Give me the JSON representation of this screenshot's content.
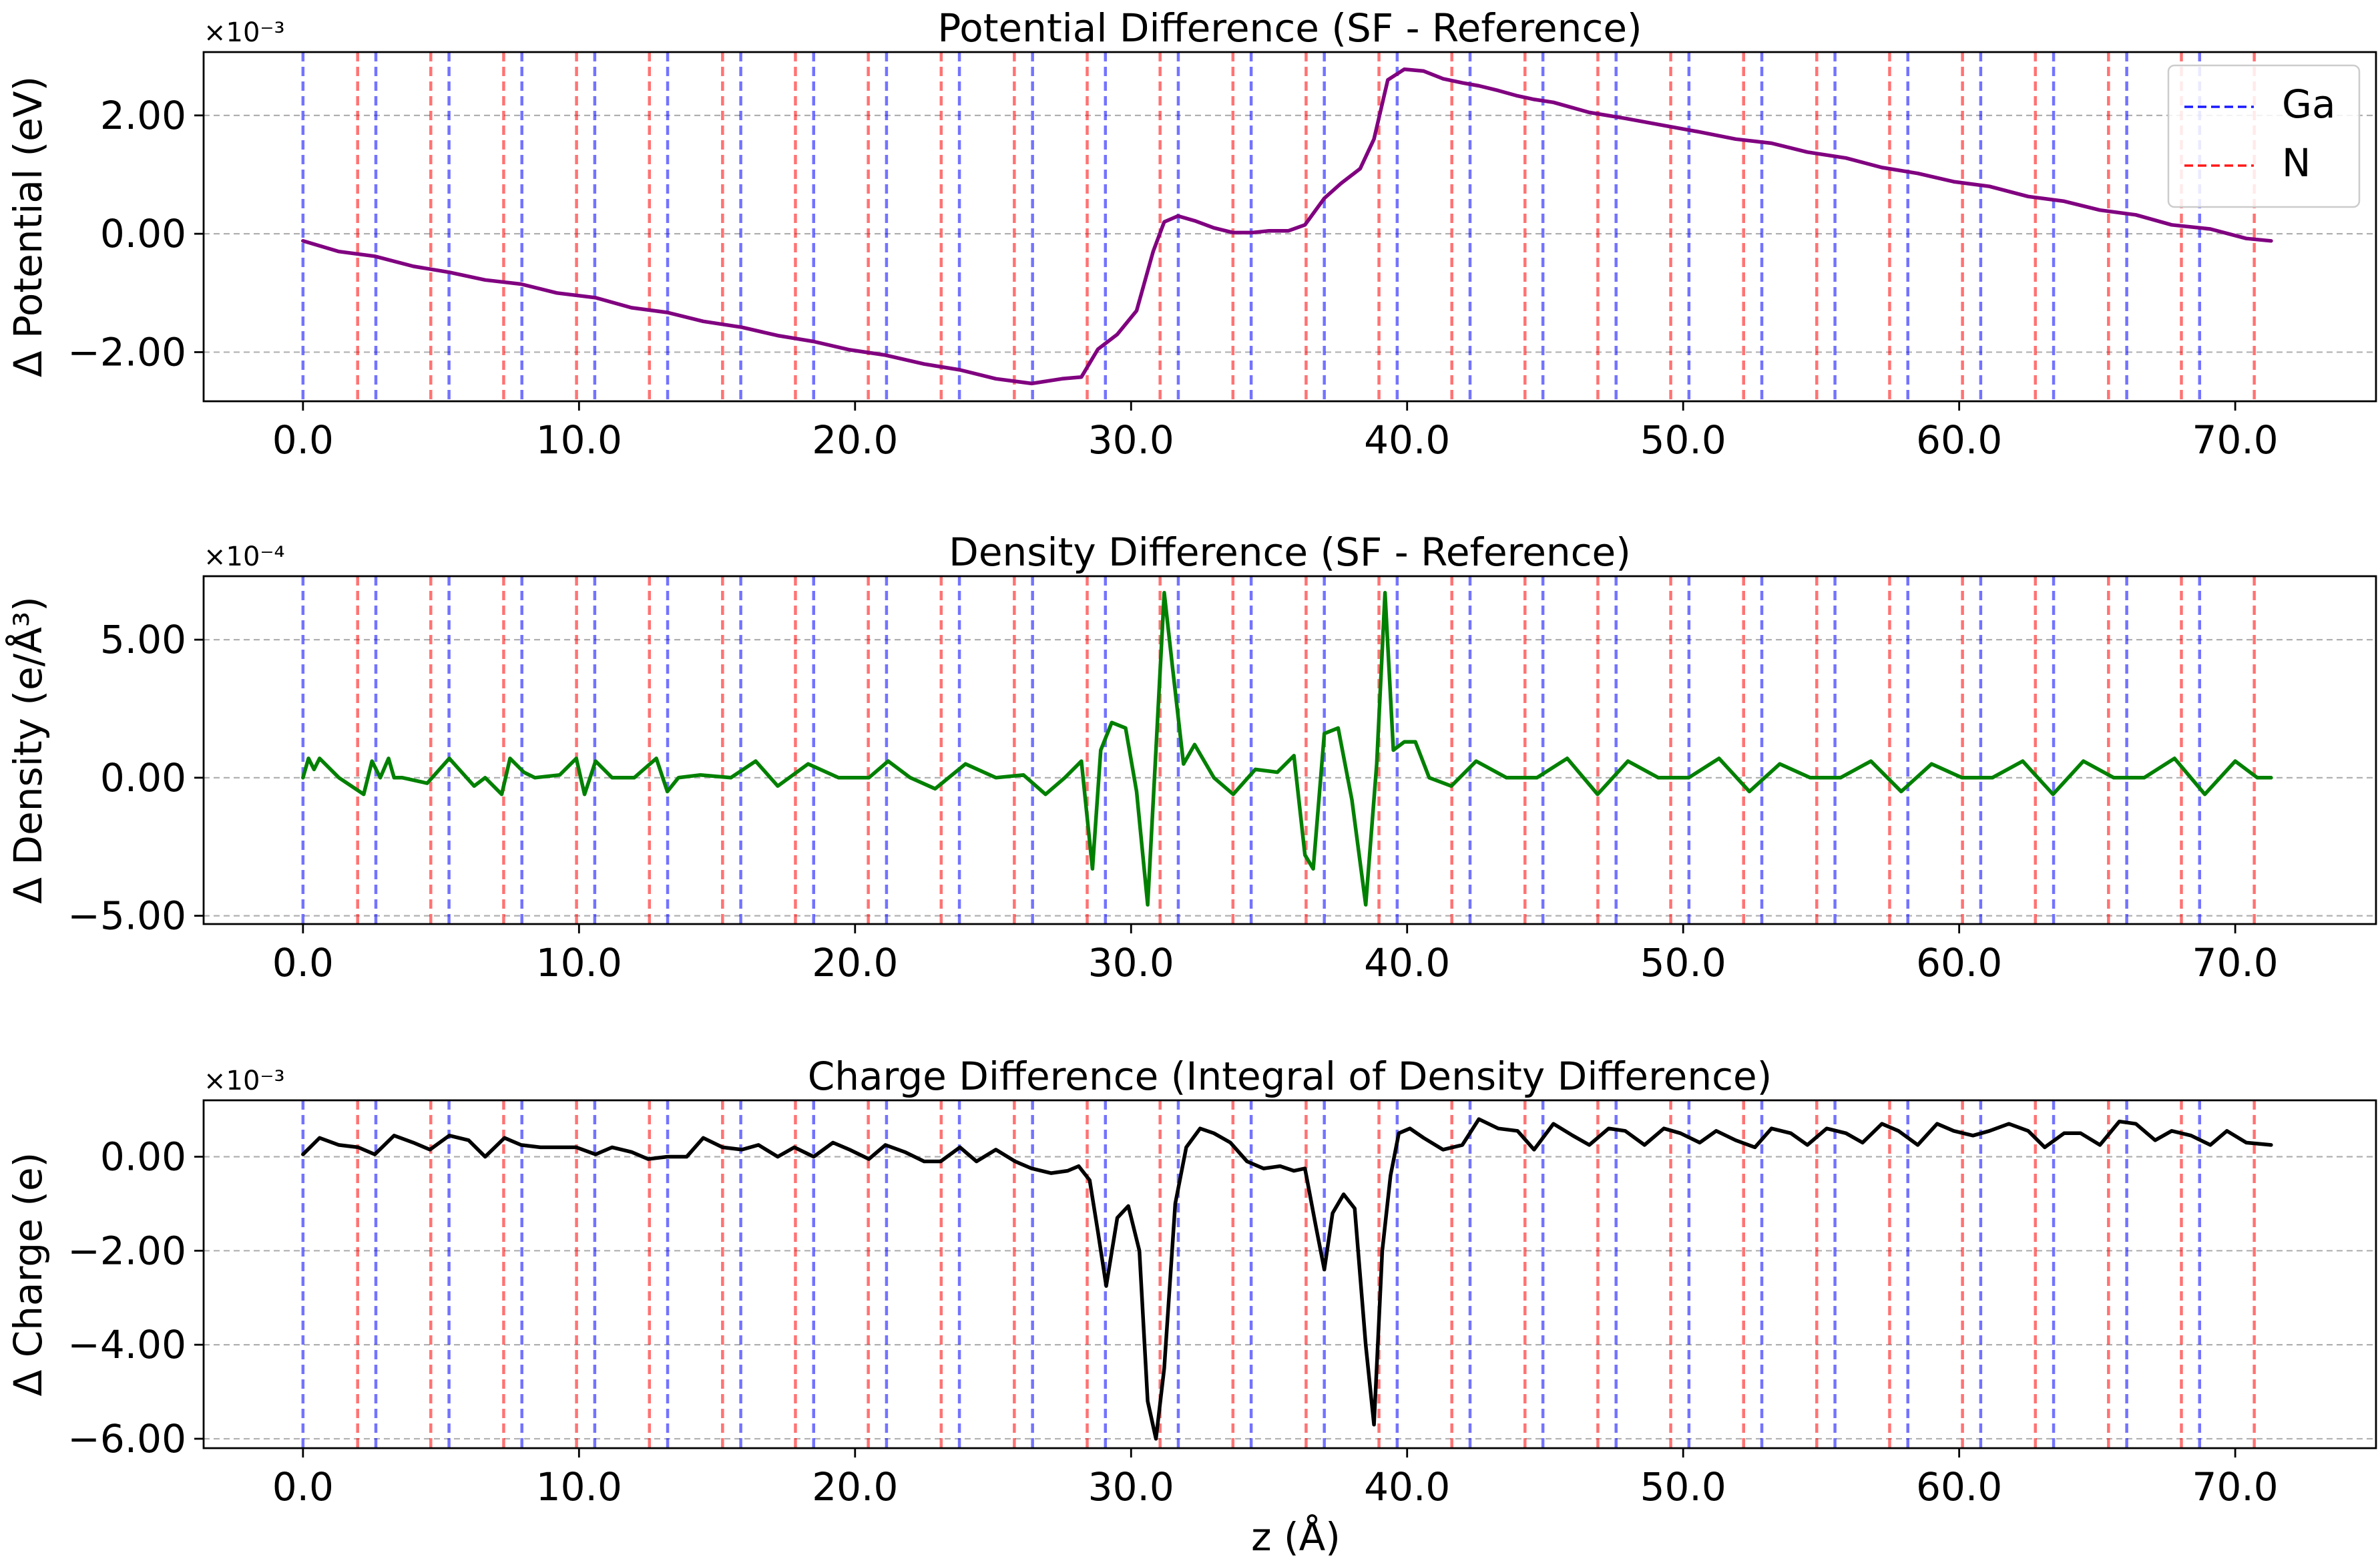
{
  "figure": {
    "xlabel": "z (Å)"
  },
  "legend": {
    "placement": "top-right",
    "items": [
      {
        "label": "Ga",
        "color": "#0000ff"
      },
      {
        "label": "N",
        "color": "#ff0000"
      }
    ]
  },
  "atom_lines": {
    "Ga": [
      0.0,
      2.64,
      5.29,
      7.93,
      10.57,
      13.21,
      15.86,
      18.5,
      21.14,
      23.78,
      26.43,
      29.07,
      31.71,
      34.35,
      37.0,
      39.64,
      42.28,
      44.92,
      47.57,
      50.21,
      52.85,
      55.5,
      58.14,
      60.78,
      63.42,
      66.07,
      68.71
    ],
    "N": [
      1.98,
      4.63,
      7.27,
      9.91,
      12.55,
      15.2,
      17.84,
      20.48,
      23.12,
      25.77,
      28.41,
      31.05,
      33.69,
      36.34,
      38.98,
      41.62,
      44.27,
      46.91,
      49.55,
      52.19,
      54.84,
      57.48,
      60.12,
      62.76,
      65.41,
      68.05,
      70.69
    ]
  },
  "chart_data": [
    {
      "type": "line",
      "title": "Potential Difference (SF - Reference)",
      "ylabel": "Δ Potential (eV)",
      "xlabel": "",
      "offset_text": "×10⁻³",
      "xlim": [
        -3.6,
        75.1
      ],
      "ylim": [
        -2.83,
        3.07
      ],
      "xticks": [
        "0.0",
        "10.0",
        "20.0",
        "30.0",
        "40.0",
        "50.0",
        "60.0",
        "70.0"
      ],
      "yticks": [
        "−2.00",
        "0.00",
        "2.00"
      ],
      "grid": "horizontal dashed",
      "series": [
        {
          "color": "#800080",
          "x": [
            0,
            1.3,
            2.6,
            4,
            5.3,
            6.6,
            7.9,
            9.2,
            10.6,
            11.9,
            13.2,
            14.5,
            15.9,
            17.2,
            18.5,
            19.8,
            21.1,
            22.5,
            23.8,
            25.1,
            26.4,
            27.5,
            28.2,
            28.8,
            29.5,
            30.2,
            30.8,
            31.2,
            31.7,
            32.3,
            33,
            33.7,
            34.4,
            35,
            35.7,
            36.3,
            37,
            37.6,
            38.3,
            38.8,
            39.3,
            39.9,
            40.6,
            41.3,
            42,
            42.6,
            43.3,
            44,
            44.6,
            45.3,
            46.6,
            47.9,
            49.3,
            50.6,
            51.9,
            53.2,
            54.5,
            55.9,
            57.2,
            58.5,
            59.8,
            61.1,
            62.5,
            63.8,
            65.1,
            66.4,
            67.7,
            69.1,
            70.4,
            71.3
          ],
          "y": [
            -0.12,
            -0.3,
            -0.38,
            -0.55,
            -0.65,
            -0.78,
            -0.85,
            -1.0,
            -1.08,
            -1.25,
            -1.33,
            -1.48,
            -1.58,
            -1.72,
            -1.82,
            -1.96,
            -2.05,
            -2.2,
            -2.3,
            -2.45,
            -2.53,
            -2.45,
            -2.42,
            -1.95,
            -1.7,
            -1.3,
            -0.3,
            0.2,
            0.3,
            0.22,
            0.1,
            0.02,
            0.02,
            0.05,
            0.05,
            0.15,
            0.6,
            0.85,
            1.1,
            1.6,
            2.6,
            2.78,
            2.75,
            2.62,
            2.55,
            2.5,
            2.42,
            2.33,
            2.27,
            2.22,
            2.05,
            1.95,
            1.83,
            1.72,
            1.6,
            1.53,
            1.38,
            1.28,
            1.12,
            1.02,
            0.88,
            0.8,
            0.63,
            0.55,
            0.4,
            0.32,
            0.15,
            0.08,
            -0.08,
            -0.12
          ]
        }
      ]
    },
    {
      "type": "line",
      "title": "Density Difference (SF - Reference)",
      "ylabel": "Δ Density (e/Å³)",
      "xlabel": "",
      "offset_text": "×10⁻⁴",
      "xlim": [
        -3.6,
        75.1
      ],
      "ylim": [
        -5.3,
        7.3
      ],
      "xticks": [
        "0.0",
        "10.0",
        "20.0",
        "30.0",
        "40.0",
        "50.0",
        "60.0",
        "70.0"
      ],
      "yticks": [
        "−5.00",
        "0.00",
        "5.00"
      ],
      "grid": "horizontal dashed",
      "series": [
        {
          "color": "#008000",
          "x": [
            0,
            0.2,
            0.4,
            0.6,
            1.3,
            2.2,
            2.5,
            2.8,
            3.1,
            3.3,
            3.6,
            4.5,
            5.3,
            6.2,
            6.6,
            7.2,
            7.5,
            8.0,
            8.4,
            9.3,
            9.9,
            10.2,
            10.6,
            11.2,
            12.0,
            12.8,
            13.2,
            13.6,
            14.4,
            15.5,
            16.4,
            17.2,
            18.3,
            19.4,
            20.5,
            21.2,
            22.0,
            22.9,
            24.0,
            25.1,
            26.1,
            26.9,
            27.6,
            28.2,
            28.6,
            28.9,
            29.3,
            29.8,
            30.2,
            30.6,
            30.9,
            31.2,
            31.5,
            31.9,
            32.3,
            33.0,
            33.7,
            34.5,
            35.3,
            35.9,
            36.3,
            36.6,
            37.0,
            37.5,
            38.0,
            38.5,
            38.9,
            39.2,
            39.5,
            39.9,
            40.3,
            40.8,
            41.6,
            42.5,
            43.6,
            44.7,
            45.8,
            46.9,
            48.0,
            49.1,
            50.2,
            51.3,
            52.4,
            53.5,
            54.6,
            55.7,
            56.8,
            57.9,
            59.0,
            60.1,
            61.2,
            62.3,
            63.4,
            64.5,
            65.6,
            66.7,
            67.8,
            68.9,
            70.0,
            70.8,
            71.3
          ],
          "y": [
            0.0,
            0.7,
            0.3,
            0.7,
            0.0,
            -0.6,
            0.6,
            0.0,
            0.7,
            0.0,
            0.0,
            -0.2,
            0.7,
            -0.3,
            0.0,
            -0.6,
            0.7,
            0.2,
            0.0,
            0.1,
            0.7,
            -0.6,
            0.6,
            0.0,
            0.0,
            0.7,
            -0.5,
            0.0,
            0.1,
            0.0,
            0.6,
            -0.3,
            0.5,
            0.0,
            0.0,
            0.6,
            0.0,
            -0.4,
            0.5,
            0.0,
            0.1,
            -0.6,
            0.0,
            0.6,
            -3.3,
            1.0,
            2.0,
            1.8,
            -0.5,
            -4.6,
            1.0,
            6.7,
            4.0,
            0.5,
            1.2,
            0.0,
            -0.6,
            0.3,
            0.2,
            0.8,
            -2.8,
            -3.3,
            1.6,
            1.8,
            -0.8,
            -4.6,
            0.5,
            6.7,
            1.0,
            1.3,
            1.3,
            0.0,
            -0.3,
            0.6,
            0.0,
            0.0,
            0.7,
            -0.6,
            0.6,
            0.0,
            0.0,
            0.7,
            -0.5,
            0.5,
            0.0,
            0.0,
            0.6,
            -0.5,
            0.5,
            0.0,
            0.0,
            0.6,
            -0.6,
            0.6,
            0.0,
            0.0,
            0.7,
            -0.6,
            0.6,
            0.0,
            0.0
          ]
        }
      ]
    },
    {
      "type": "line",
      "title": "Charge Difference (Integral of Density Difference)",
      "ylabel": "Δ Charge (e)",
      "xlabel": "z (Å)",
      "offset_text": "×10⁻³",
      "xlim": [
        -3.6,
        75.1
      ],
      "ylim": [
        -6.2,
        1.2
      ],
      "xticks": [
        "0.0",
        "10.0",
        "20.0",
        "30.0",
        "40.0",
        "50.0",
        "60.0",
        "70.0"
      ],
      "yticks": [
        "−6.00",
        "−4.00",
        "−2.00",
        "0.00"
      ],
      "grid": "horizontal dashed",
      "series": [
        {
          "color": "#000000",
          "x": [
            0,
            0.6,
            1.3,
            2.0,
            2.6,
            3.3,
            4.0,
            4.6,
            5.3,
            6.0,
            6.6,
            7.3,
            7.9,
            8.6,
            9.2,
            9.9,
            10.6,
            11.2,
            11.9,
            12.5,
            13.2,
            13.9,
            14.5,
            15.2,
            15.9,
            16.5,
            17.2,
            17.8,
            18.5,
            19.2,
            19.8,
            20.5,
            21.1,
            21.8,
            22.5,
            23.1,
            23.8,
            24.4,
            25.1,
            25.8,
            26.4,
            27.1,
            27.7,
            28.1,
            28.5,
            28.8,
            29.1,
            29.5,
            29.9,
            30.3,
            30.6,
            30.9,
            31.2,
            31.6,
            32.0,
            32.5,
            33.0,
            33.6,
            34.2,
            34.8,
            35.4,
            35.9,
            36.3,
            36.7,
            37.0,
            37.3,
            37.7,
            38.1,
            38.5,
            38.8,
            39.1,
            39.4,
            39.7,
            40.1,
            40.6,
            41.3,
            42.0,
            42.6,
            43.3,
            44.0,
            44.6,
            45.3,
            46.0,
            46.6,
            47.3,
            47.9,
            48.6,
            49.3,
            49.9,
            50.6,
            51.2,
            51.9,
            52.6,
            53.2,
            53.9,
            54.5,
            55.2,
            55.9,
            56.5,
            57.2,
            57.8,
            58.5,
            59.2,
            59.8,
            60.5,
            61.1,
            61.8,
            62.5,
            63.1,
            63.8,
            64.4,
            65.1,
            65.8,
            66.4,
            67.1,
            67.7,
            68.4,
            69.1,
            69.7,
            70.4,
            71.3
          ],
          "y": [
            0.05,
            0.4,
            0.25,
            0.2,
            0.05,
            0.45,
            0.3,
            0.15,
            0.45,
            0.35,
            0.0,
            0.4,
            0.25,
            0.2,
            0.2,
            0.2,
            0.05,
            0.2,
            0.1,
            -0.05,
            0.0,
            0.0,
            0.4,
            0.2,
            0.15,
            0.25,
            0.0,
            0.2,
            0.0,
            0.3,
            0.15,
            -0.05,
            0.25,
            0.1,
            -0.1,
            -0.1,
            0.2,
            -0.1,
            0.15,
            -0.1,
            -0.25,
            -0.35,
            -0.3,
            -0.2,
            -0.5,
            -1.6,
            -2.75,
            -1.3,
            -1.05,
            -2.0,
            -5.2,
            -6.0,
            -4.5,
            -1.0,
            0.2,
            0.6,
            0.5,
            0.3,
            -0.1,
            -0.25,
            -0.2,
            -0.3,
            -0.25,
            -1.5,
            -2.4,
            -1.2,
            -0.8,
            -1.1,
            -4.0,
            -5.7,
            -2.0,
            -0.4,
            0.5,
            0.6,
            0.4,
            0.15,
            0.25,
            0.8,
            0.6,
            0.55,
            0.15,
            0.7,
            0.45,
            0.25,
            0.6,
            0.55,
            0.25,
            0.6,
            0.5,
            0.3,
            0.55,
            0.35,
            0.2,
            0.6,
            0.5,
            0.25,
            0.6,
            0.5,
            0.3,
            0.7,
            0.55,
            0.25,
            0.7,
            0.55,
            0.45,
            0.55,
            0.7,
            0.55,
            0.2,
            0.5,
            0.5,
            0.25,
            0.75,
            0.7,
            0.35,
            0.55,
            0.45,
            0.25,
            0.55,
            0.3,
            0.25
          ]
        }
      ]
    }
  ]
}
